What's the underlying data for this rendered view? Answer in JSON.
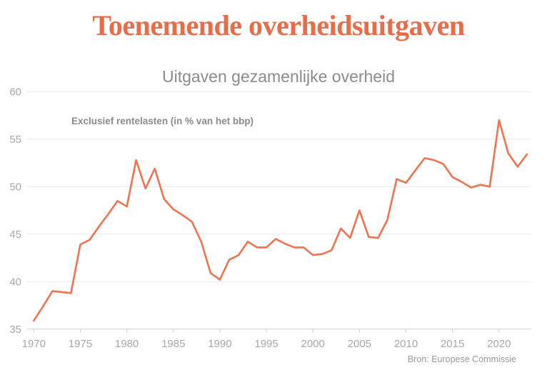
{
  "header": {
    "title": "Toenemende overheidsuitgaven"
  },
  "chart": {
    "subtitle": "Uitgaven gezamenlijke overheid",
    "annotation": "Exclusief rentelasten (in % van het bbp)",
    "source": "Bron: Europese Commissie"
  },
  "colors": {
    "accent": "#e96c48",
    "line": "#ee7350",
    "grid": "#e9e9e9",
    "axis": "#cfcfcf",
    "tick_label": "#a7a7a7",
    "muted_text": "#8b8b8b"
  },
  "chart_data": {
    "type": "line",
    "title": "Uitgaven gezamenlijke overheid",
    "annotation": "Exclusief rentelasten (in % van het bbp)",
    "source": "Bron: Europese Commissie",
    "x": [
      1970,
      1971,
      1972,
      1973,
      1974,
      1975,
      1976,
      1977,
      1978,
      1979,
      1980,
      1981,
      1982,
      1983,
      1984,
      1985,
      1986,
      1987,
      1988,
      1989,
      1990,
      1991,
      1992,
      1993,
      1994,
      1995,
      1996,
      1997,
      1998,
      1999,
      2000,
      2001,
      2002,
      2003,
      2004,
      2005,
      2006,
      2007,
      2008,
      2009,
      2010,
      2011,
      2012,
      2013,
      2014,
      2015,
      2016,
      2017,
      2018,
      2019,
      2020,
      2021,
      2022,
      2023
    ],
    "series": [
      {
        "name": "Uitgaven gezamenlijke overheid, exclusief rentelasten (in % van het bbp)",
        "values": [
          35.9,
          37.4,
          39.0,
          38.9,
          38.8,
          43.9,
          44.4,
          45.8,
          47.1,
          48.5,
          47.9,
          52.8,
          49.8,
          51.9,
          48.7,
          47.6,
          47.0,
          46.3,
          44.2,
          40.9,
          40.2,
          42.3,
          42.8,
          44.2,
          43.6,
          43.6,
          44.5,
          44.0,
          43.6,
          43.6,
          42.8,
          42.9,
          43.3,
          45.6,
          44.6,
          47.5,
          44.7,
          44.6,
          46.5,
          50.8,
          50.4,
          51.7,
          53.0,
          52.8,
          52.4,
          51.0,
          50.5,
          49.9,
          50.2,
          50.0,
          57.0,
          53.5,
          52.1,
          53.4
        ]
      }
    ],
    "xlabel": "",
    "ylabel": "",
    "xlim": [
      1970,
      2023
    ],
    "ylim": [
      35,
      60
    ],
    "yticks": [
      35,
      40,
      45,
      50,
      55,
      60
    ],
    "xticks": [
      1970,
      1975,
      1980,
      1985,
      1990,
      1995,
      2000,
      2005,
      2010,
      2015,
      2020
    ],
    "grid": "horizontal",
    "legend": "none"
  }
}
